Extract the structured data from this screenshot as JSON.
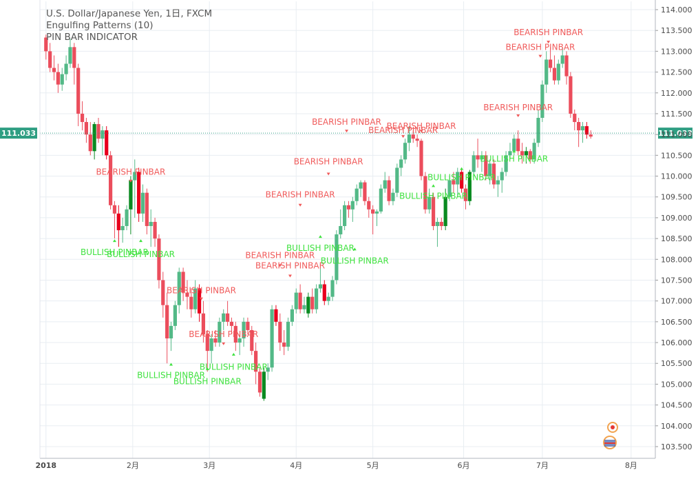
{
  "legend": {
    "symbol": "U.S. Dollar/Japanese Yen, 1日, FXCM",
    "study1": "Engulfing Patterns (10)",
    "study2": "PIN BAR INDICATOR"
  },
  "colors": {
    "up": "#53b987",
    "down": "#eb4d5c",
    "engulf_up": "#0a8a21",
    "engulf_down": "#e8001d",
    "bearish_label": "#f05a5a",
    "bullish_label": "#3fe23f",
    "grid": "#e8edf2",
    "axis_text": "#4a4a4a",
    "price_line": "#2e9e82"
  },
  "chart_data": {
    "type": "candlestick",
    "y_ticks": [
      "114.000",
      "113.500",
      "113.000",
      "112.500",
      "112.000",
      "111.500",
      "111.000",
      "110.500",
      "110.000",
      "109.500",
      "109.000",
      "108.500",
      "108.000",
      "107.500",
      "107.000",
      "106.500",
      "106.000",
      "105.500",
      "105.000",
      "104.500",
      "104.000",
      "103.500"
    ],
    "ylim": [
      103.3,
      114.1
    ],
    "x_ticks": [
      {
        "label": "2018",
        "x": 0
      },
      {
        "label": "2月",
        "x": 21.5
      },
      {
        "label": "3月",
        "x": 40.5
      },
      {
        "label": "4月",
        "x": 62
      },
      {
        "label": "5月",
        "x": 81
      },
      {
        "label": "6月",
        "x": 103.5
      },
      {
        "label": "7月",
        "x": 123
      },
      {
        "label": "8月",
        "x": 145
      }
    ],
    "xlim": [
      -1.5,
      151
    ],
    "last_price": "111.033",
    "last_price_value": 111.033,
    "candles": [
      [
        113.33,
        113.4,
        112.8,
        113.0,
        0
      ],
      [
        113.0,
        113.2,
        112.5,
        112.6,
        0
      ],
      [
        112.6,
        112.9,
        112.3,
        112.5,
        0
      ],
      [
        112.5,
        112.7,
        112.0,
        112.2,
        0
      ],
      [
        112.2,
        112.6,
        112.05,
        112.45,
        0
      ],
      [
        112.45,
        112.9,
        112.3,
        112.7,
        0
      ],
      [
        112.7,
        113.3,
        112.6,
        113.1,
        0
      ],
      [
        113.1,
        113.2,
        112.2,
        112.6,
        0
      ],
      [
        112.6,
        112.7,
        111.2,
        111.5,
        0
      ],
      [
        111.5,
        111.8,
        111.1,
        111.3,
        0
      ],
      [
        111.3,
        111.4,
        110.8,
        111.0,
        0
      ],
      [
        111.0,
        111.3,
        110.5,
        110.6,
        0
      ],
      [
        110.6,
        111.3,
        110.4,
        111.25,
        2
      ],
      [
        111.25,
        111.4,
        110.8,
        110.9,
        0
      ],
      [
        110.9,
        111.2,
        110.5,
        111.1,
        0
      ],
      [
        111.1,
        111.2,
        110.4,
        110.5,
        3
      ],
      [
        110.5,
        110.6,
        109.2,
        109.3,
        0
      ],
      [
        109.3,
        109.4,
        108.5,
        109.1,
        0
      ],
      [
        109.1,
        109.3,
        108.3,
        108.7,
        3
      ],
      [
        108.7,
        109.0,
        108.4,
        108.8,
        0
      ],
      [
        108.8,
        109.3,
        108.7,
        109.2,
        0
      ],
      [
        109.2,
        110.0,
        108.6,
        109.9,
        2
      ],
      [
        109.9,
        110.4,
        109.0,
        110.1,
        0
      ],
      [
        110.1,
        110.2,
        108.9,
        109.1,
        3
      ],
      [
        109.1,
        109.8,
        108.9,
        109.6,
        0
      ],
      [
        109.6,
        109.7,
        108.6,
        108.8,
        0
      ],
      [
        108.8,
        109.2,
        108.3,
        108.9,
        0
      ],
      [
        108.9,
        109.0,
        108.3,
        108.5,
        0
      ],
      [
        108.5,
        108.6,
        107.3,
        107.5,
        0
      ],
      [
        107.5,
        107.7,
        106.6,
        106.9,
        0
      ],
      [
        106.9,
        107.2,
        105.5,
        106.1,
        0
      ],
      [
        106.1,
        106.5,
        105.8,
        106.4,
        0
      ],
      [
        106.4,
        107.0,
        106.3,
        106.9,
        0
      ],
      [
        106.9,
        107.8,
        106.7,
        107.7,
        0
      ],
      [
        107.7,
        107.8,
        107.0,
        107.2,
        0
      ],
      [
        107.2,
        107.5,
        106.8,
        107.1,
        0
      ],
      [
        107.1,
        107.3,
        106.6,
        106.8,
        0
      ],
      [
        106.8,
        107.5,
        106.7,
        107.3,
        0
      ],
      [
        107.3,
        107.4,
        106.5,
        106.7,
        3
      ],
      [
        106.7,
        107.0,
        106.0,
        106.2,
        0
      ],
      [
        106.2,
        106.3,
        105.3,
        105.8,
        0
      ],
      [
        105.8,
        106.2,
        105.5,
        106.1,
        0
      ],
      [
        106.1,
        106.3,
        105.9,
        106.0,
        0
      ],
      [
        106.0,
        106.6,
        105.9,
        106.5,
        0
      ],
      [
        106.5,
        106.8,
        106.3,
        106.7,
        0
      ],
      [
        106.7,
        107.0,
        106.4,
        106.5,
        0
      ],
      [
        106.5,
        106.6,
        106.2,
        106.4,
        0
      ],
      [
        106.4,
        106.5,
        105.8,
        106.0,
        0
      ],
      [
        106.0,
        106.2,
        105.7,
        106.1,
        0
      ],
      [
        106.1,
        106.6,
        105.9,
        106.5,
        0
      ],
      [
        106.5,
        106.6,
        106.2,
        106.3,
        0
      ],
      [
        106.3,
        106.4,
        105.7,
        105.8,
        0
      ],
      [
        105.8,
        106.0,
        105.0,
        105.3,
        0
      ],
      [
        105.3,
        105.4,
        104.7,
        104.8,
        0
      ],
      [
        104.65,
        105.4,
        104.6,
        105.3,
        2
      ],
      [
        105.3,
        105.5,
        105.1,
        105.4,
        0
      ],
      [
        105.4,
        106.9,
        105.3,
        106.8,
        0
      ],
      [
        106.8,
        106.9,
        106.4,
        106.5,
        3
      ],
      [
        106.5,
        106.7,
        105.8,
        106.0,
        0
      ],
      [
        106.0,
        106.3,
        105.7,
        105.9,
        0
      ],
      [
        105.9,
        106.6,
        105.8,
        106.5,
        0
      ],
      [
        106.5,
        106.9,
        106.4,
        106.8,
        0
      ],
      [
        106.8,
        107.3,
        106.7,
        107.2,
        0
      ],
      [
        107.2,
        107.4,
        106.7,
        106.8,
        0
      ],
      [
        106.8,
        107.1,
        106.7,
        106.9,
        0
      ],
      [
        106.7,
        107.2,
        106.6,
        107.1,
        2
      ],
      [
        107.1,
        107.3,
        106.7,
        106.8,
        0
      ],
      [
        106.8,
        107.4,
        106.7,
        107.3,
        0
      ],
      [
        107.3,
        107.9,
        107.2,
        107.4,
        0
      ],
      [
        107.4,
        107.5,
        106.9,
        107.0,
        3
      ],
      [
        107.0,
        107.2,
        106.9,
        107.1,
        0
      ],
      [
        107.1,
        107.6,
        107.0,
        107.5,
        0
      ],
      [
        107.5,
        108.7,
        107.4,
        108.6,
        0
      ],
      [
        108.6,
        109.2,
        108.5,
        108.8,
        0
      ],
      [
        108.8,
        109.4,
        108.7,
        109.3,
        0
      ],
      [
        109.3,
        109.4,
        109.0,
        109.2,
        0
      ],
      [
        109.2,
        109.5,
        108.9,
        109.4,
        0
      ],
      [
        109.4,
        109.8,
        109.3,
        109.7,
        0
      ],
      [
        109.7,
        109.9,
        109.5,
        109.85,
        0
      ],
      [
        109.85,
        109.9,
        109.3,
        109.4,
        0
      ],
      [
        109.4,
        109.5,
        109.0,
        109.2,
        0
      ],
      [
        109.2,
        109.3,
        108.6,
        109.1,
        0
      ],
      [
        109.1,
        109.2,
        108.8,
        109.15,
        0
      ],
      [
        109.15,
        109.8,
        109.1,
        109.7,
        0
      ],
      [
        109.7,
        110.1,
        109.6,
        109.9,
        0
      ],
      [
        109.9,
        110.0,
        109.3,
        109.4,
        0
      ],
      [
        109.4,
        109.7,
        109.3,
        109.6,
        0
      ],
      [
        109.6,
        110.3,
        109.5,
        110.2,
        0
      ],
      [
        110.2,
        110.5,
        110.0,
        110.4,
        0
      ],
      [
        110.4,
        110.9,
        110.3,
        110.8,
        0
      ],
      [
        110.8,
        111.2,
        110.6,
        111.0,
        0
      ],
      [
        111.0,
        111.1,
        110.8,
        110.9,
        0
      ],
      [
        110.9,
        111.0,
        110.7,
        110.85,
        0
      ],
      [
        110.85,
        110.9,
        109.9,
        110.0,
        0
      ],
      [
        110.0,
        110.1,
        109.1,
        109.2,
        0
      ],
      [
        109.2,
        109.7,
        109.1,
        109.5,
        0
      ],
      [
        109.5,
        109.6,
        108.7,
        108.8,
        0
      ],
      [
        108.8,
        109.0,
        108.3,
        108.9,
        0
      ],
      [
        108.9,
        109.0,
        108.7,
        108.8,
        0
      ],
      [
        108.8,
        109.7,
        108.7,
        109.5,
        2
      ],
      [
        109.5,
        110.0,
        109.4,
        109.9,
        0
      ],
      [
        109.9,
        110.1,
        109.6,
        109.8,
        0
      ],
      [
        109.8,
        110.2,
        109.5,
        110.1,
        0
      ],
      [
        110.1,
        110.2,
        109.6,
        109.7,
        3
      ],
      [
        109.7,
        109.8,
        109.2,
        109.4,
        0
      ],
      [
        109.4,
        110.15,
        109.3,
        110.1,
        2
      ],
      [
        110.1,
        110.6,
        110.0,
        110.5,
        0
      ],
      [
        110.5,
        110.9,
        110.2,
        110.4,
        0
      ],
      [
        110.4,
        110.6,
        110.1,
        110.5,
        0
      ],
      [
        110.5,
        110.6,
        109.9,
        110.0,
        0
      ],
      [
        110.0,
        110.4,
        109.8,
        110.3,
        0
      ],
      [
        110.3,
        110.4,
        109.7,
        109.8,
        0
      ],
      [
        109.8,
        110.0,
        109.5,
        109.9,
        0
      ],
      [
        109.9,
        110.2,
        109.6,
        110.1,
        0
      ],
      [
        110.1,
        110.6,
        110.0,
        110.5,
        0
      ],
      [
        110.5,
        110.8,
        110.4,
        110.6,
        0
      ],
      [
        110.6,
        111.0,
        110.5,
        110.9,
        0
      ],
      [
        110.9,
        111.1,
        110.5,
        110.6,
        0
      ],
      [
        110.6,
        110.8,
        110.3,
        110.5,
        0
      ],
      [
        110.5,
        110.7,
        110.3,
        110.6,
        2
      ],
      [
        110.6,
        110.65,
        110.3,
        110.4,
        0
      ],
      [
        110.4,
        110.9,
        110.3,
        110.8,
        0
      ],
      [
        110.8,
        111.6,
        110.7,
        111.4,
        0
      ],
      [
        111.4,
        112.3,
        111.3,
        112.2,
        0
      ],
      [
        112.2,
        113.0,
        112.0,
        112.8,
        0
      ],
      [
        112.8,
        113.1,
        112.5,
        112.6,
        0
      ],
      [
        112.6,
        112.9,
        112.2,
        112.3,
        0
      ],
      [
        112.3,
        112.8,
        112.2,
        112.7,
        0
      ],
      [
        112.7,
        113.1,
        112.6,
        112.9,
        0
      ],
      [
        112.9,
        113.0,
        112.2,
        112.4,
        0
      ],
      [
        112.4,
        112.5,
        111.4,
        111.5,
        0
      ],
      [
        111.5,
        111.6,
        111.1,
        111.3,
        0
      ],
      [
        111.3,
        111.4,
        110.7,
        111.1,
        0
      ],
      [
        111.1,
        111.3,
        110.8,
        111.2,
        0
      ],
      [
        111.2,
        111.3,
        110.9,
        111.0,
        3
      ],
      [
        111.0,
        111.1,
        110.9,
        110.95,
        0
      ]
    ],
    "pin_labels": [
      {
        "kind": "bearish",
        "text": "BEARISH PINBAR",
        "x": 21.0,
        "marker_y": 109.88,
        "label_y": 110.0,
        "align": "middle"
      },
      {
        "kind": "bullish",
        "text": "BULLISH PINBAR",
        "x": 17.0,
        "marker_y": 108.45,
        "label_y": 108.2,
        "align": "middle"
      },
      {
        "kind": "bullish",
        "text": "BULLISH PINBAR",
        "x": 23.5,
        "marker_y": 108.45,
        "label_y": 108.15,
        "align": "middle"
      },
      {
        "kind": "bearish",
        "text": "BEARISH PINBAR",
        "x": 38.5,
        "marker_y": 107.05,
        "label_y": 107.15,
        "align": "middle"
      },
      {
        "kind": "bullish",
        "text": "BULLISH PINBAR",
        "x": 31.0,
        "marker_y": 105.48,
        "label_y": 105.25,
        "align": "middle"
      },
      {
        "kind": "bullish",
        "text": "BULLISH PINBAR",
        "x": 40.0,
        "marker_y": 105.37,
        "label_y": 105.1,
        "align": "middle"
      },
      {
        "kind": "bullish",
        "text": "BULLISH PINBAR",
        "x": 46.5,
        "marker_y": 105.72,
        "label_y": 105.45,
        "align": "middle"
      },
      {
        "kind": "bearish",
        "text": "BEARISH PINBAR",
        "x": 44.0,
        "marker_y": 105.97,
        "label_y": 106.1,
        "align": "middle"
      },
      {
        "kind": "bearish",
        "text": "BEARISH PINBAR",
        "x": 58.0,
        "marker_y": 107.85,
        "label_y": 108.0,
        "align": "middle"
      },
      {
        "kind": "bearish",
        "text": "BEARISH PINBAR",
        "x": 60.5,
        "marker_y": 107.6,
        "label_y": 107.75,
        "align": "middle"
      },
      {
        "kind": "bearish",
        "text": "BEARISH PINBAR",
        "x": 63.0,
        "marker_y": 109.3,
        "label_y": 109.45,
        "align": "middle"
      },
      {
        "kind": "bearish",
        "text": "BEARISH PINBAR",
        "x": 70.0,
        "marker_y": 110.05,
        "label_y": 110.25,
        "align": "middle"
      },
      {
        "kind": "bearish",
        "text": "BEARISH PINBAR",
        "x": 74.5,
        "marker_y": 111.08,
        "label_y": 111.2,
        "align": "middle"
      },
      {
        "kind": "bullish",
        "text": "BULLISH PINBAR",
        "x": 68.0,
        "marker_y": 108.55,
        "label_y": 108.3,
        "align": "middle"
      },
      {
        "kind": "bullish",
        "text": "BULLISH PINBAR",
        "x": 76.5,
        "marker_y": 108.25,
        "label_y": 108.0,
        "align": "middle"
      },
      {
        "kind": "bearish",
        "text": "BEARISH PINBAR",
        "x": 88.5,
        "marker_y": 110.95,
        "label_y": 111.0,
        "align": "middle"
      },
      {
        "kind": "bearish",
        "text": "BEARISH PINBAR",
        "x": 93.0,
        "marker_y": 111.08,
        "label_y": 111.1,
        "align": "middle"
      },
      {
        "kind": "bullish",
        "text": "BULLISH PINBAR",
        "x": 96.0,
        "marker_y": 109.77,
        "label_y": 109.55,
        "align": "middle"
      },
      {
        "kind": "bullish",
        "text": "BULLISH PINBAR",
        "x": 103.0,
        "marker_y": 110.18,
        "label_y": 110.0,
        "align": "middle"
      },
      {
        "kind": "bullish",
        "text": "BULLISH PINBAR",
        "x": 116.0,
        "marker_y": 110.6,
        "label_y": 110.45,
        "align": "middle"
      },
      {
        "kind": "bearish",
        "text": "BEARISH PINBAR",
        "x": 117.0,
        "marker_y": 111.45,
        "label_y": 111.55,
        "align": "middle"
      },
      {
        "kind": "bearish",
        "text": "BEARISH PINBAR",
        "x": 122.5,
        "marker_y": 112.88,
        "label_y": 113.0,
        "align": "middle"
      },
      {
        "kind": "bearish",
        "text": "BEARISH PINBAR",
        "x": 124.5,
        "marker_y": 113.22,
        "label_y": 113.35,
        "align": "middle"
      }
    ]
  }
}
